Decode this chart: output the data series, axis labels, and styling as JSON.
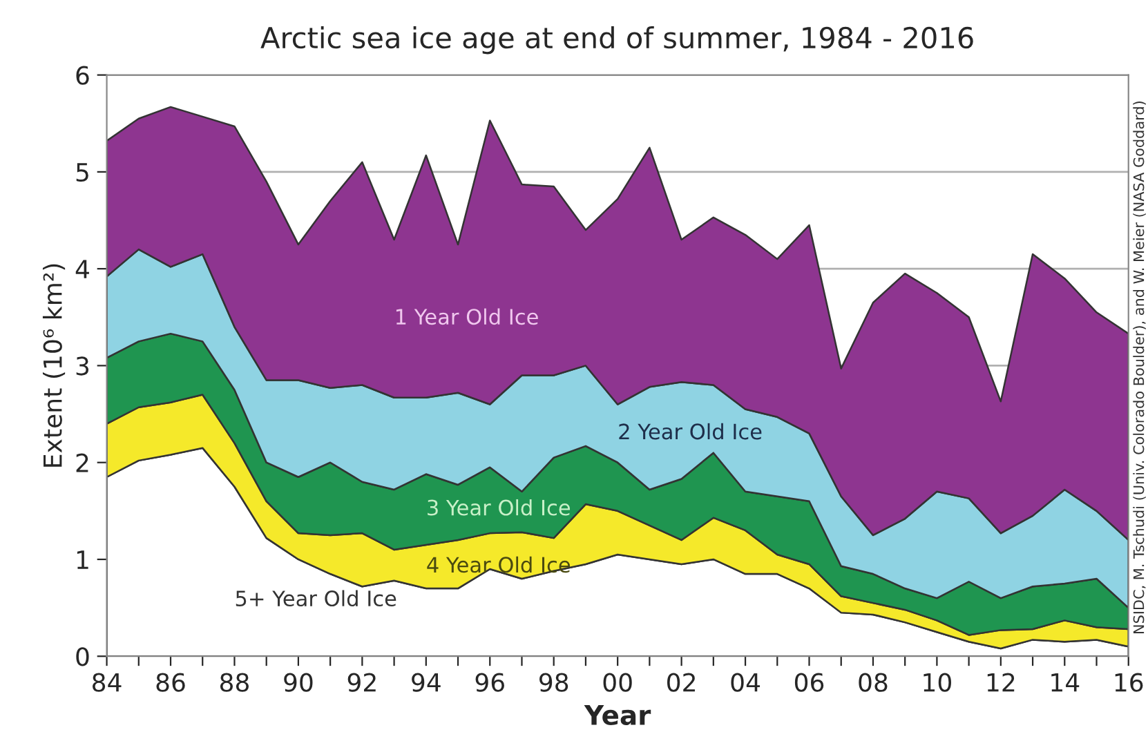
{
  "chart_data": {
    "type": "area",
    "stacked": true,
    "title": "Arctic sea ice age at end of summer, 1984 - 2016",
    "xlabel": "Year",
    "ylabel": "Extent (10⁶ km²)",
    "x": [
      1984,
      1985,
      1986,
      1987,
      1988,
      1989,
      1990,
      1991,
      1992,
      1993,
      1994,
      1995,
      1996,
      1997,
      1998,
      1999,
      2000,
      2001,
      2002,
      2003,
      2004,
      2005,
      2006,
      2007,
      2008,
      2009,
      2010,
      2011,
      2012,
      2013,
      2014,
      2015,
      2016
    ],
    "series": [
      {
        "name": "5+ Year Old Ice",
        "color": "#ffffff",
        "values": [
          1.85,
          2.02,
          2.08,
          2.15,
          1.75,
          1.22,
          1.0,
          0.85,
          0.72,
          0.78,
          0.7,
          0.7,
          0.9,
          0.8,
          0.88,
          0.95,
          1.05,
          1.0,
          0.95,
          1.0,
          0.85,
          0.85,
          0.7,
          0.45,
          0.43,
          0.35,
          0.25,
          0.15,
          0.08,
          0.17,
          0.15,
          0.17,
          0.1
        ]
      },
      {
        "name": "4 Year Old Ice",
        "color": "#f5e92a",
        "values": [
          0.55,
          0.55,
          0.54,
          0.55,
          0.45,
          0.38,
          0.27,
          0.4,
          0.55,
          0.32,
          0.45,
          0.5,
          0.37,
          0.48,
          0.34,
          0.62,
          0.45,
          0.35,
          0.25,
          0.43,
          0.45,
          0.2,
          0.25,
          0.17,
          0.12,
          0.13,
          0.12,
          0.07,
          0.19,
          0.11,
          0.22,
          0.13,
          0.18
        ]
      },
      {
        "name": "3 Year Old Ice",
        "color": "#1f9550",
        "values": [
          0.68,
          0.68,
          0.71,
          0.55,
          0.55,
          0.4,
          0.58,
          0.75,
          0.53,
          0.62,
          0.73,
          0.57,
          0.68,
          0.42,
          0.83,
          0.6,
          0.5,
          0.37,
          0.63,
          0.67,
          0.4,
          0.6,
          0.65,
          0.31,
          0.3,
          0.22,
          0.23,
          0.55,
          0.33,
          0.44,
          0.38,
          0.5,
          0.22
        ]
      },
      {
        "name": "2 Year Old Ice",
        "color": "#8fd3e3",
        "values": [
          0.84,
          0.95,
          0.69,
          0.9,
          0.65,
          0.85,
          1.0,
          0.77,
          1.0,
          0.95,
          0.79,
          0.95,
          0.65,
          1.2,
          0.85,
          0.83,
          0.6,
          1.06,
          1.0,
          0.7,
          0.85,
          0.82,
          0.7,
          0.72,
          0.4,
          0.72,
          1.1,
          0.86,
          0.67,
          0.73,
          0.97,
          0.7,
          0.7
        ]
      },
      {
        "name": "1 Year Old Ice",
        "color": "#8e3590",
        "values": [
          1.4,
          1.35,
          1.65,
          1.42,
          2.07,
          2.05,
          1.4,
          1.93,
          2.3,
          1.63,
          2.5,
          1.53,
          2.93,
          1.97,
          1.95,
          1.4,
          2.12,
          2.47,
          1.47,
          1.73,
          1.8,
          1.63,
          2.15,
          1.32,
          2.4,
          2.53,
          2.05,
          1.87,
          1.36,
          2.7,
          2.18,
          2.05,
          2.13
        ]
      }
    ],
    "xlim": [
      1984,
      2016
    ],
    "xticks": [
      {
        "value": 1984,
        "label": "84"
      },
      {
        "value": 1985,
        "label": null
      },
      {
        "value": 1986,
        "label": "86"
      },
      {
        "value": 1987,
        "label": null
      },
      {
        "value": 1988,
        "label": "88"
      },
      {
        "value": 1989,
        "label": null
      },
      {
        "value": 1990,
        "label": "90"
      },
      {
        "value": 1991,
        "label": null
      },
      {
        "value": 1992,
        "label": "92"
      },
      {
        "value": 1993,
        "label": null
      },
      {
        "value": 1994,
        "label": "94"
      },
      {
        "value": 1995,
        "label": null
      },
      {
        "value": 1996,
        "label": "96"
      },
      {
        "value": 1997,
        "label": null
      },
      {
        "value": 1998,
        "label": "98"
      },
      {
        "value": 1999,
        "label": null
      },
      {
        "value": 2000,
        "label": "00"
      },
      {
        "value": 2001,
        "label": null
      },
      {
        "value": 2002,
        "label": "02"
      },
      {
        "value": 2003,
        "label": null
      },
      {
        "value": 2004,
        "label": "04"
      },
      {
        "value": 2005,
        "label": null
      },
      {
        "value": 2006,
        "label": "06"
      },
      {
        "value": 2007,
        "label": null
      },
      {
        "value": 2008,
        "label": "08"
      },
      {
        "value": 2009,
        "label": null
      },
      {
        "value": 2010,
        "label": "10"
      },
      {
        "value": 2011,
        "label": null
      },
      {
        "value": 2012,
        "label": "12"
      },
      {
        "value": 2013,
        "label": null
      },
      {
        "value": 2014,
        "label": "14"
      },
      {
        "value": 2015,
        "label": null
      },
      {
        "value": 2016,
        "label": "16"
      }
    ],
    "ylim": [
      0,
      6
    ],
    "yticks": [
      0,
      1,
      2,
      3,
      4,
      5,
      6
    ],
    "grid": "y",
    "legend": false,
    "annotations": [
      "NSIDC, M. Tschudi (Univ. Colorado Boulder), and W. Meier (NASA Goddard)"
    ]
  }
}
